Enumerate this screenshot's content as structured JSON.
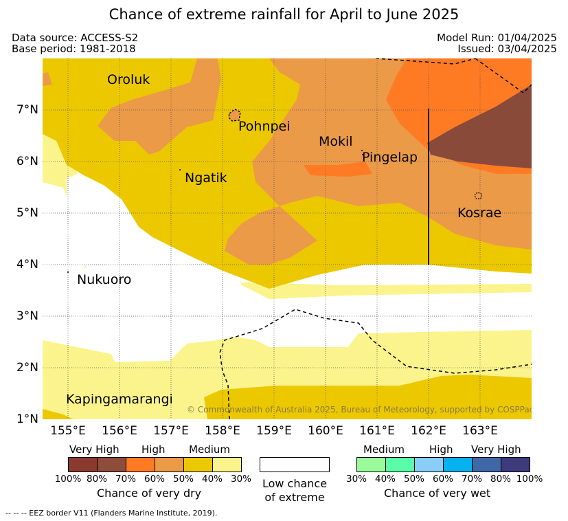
{
  "title": "Chance of extreme rainfall for April to June 2025",
  "header": {
    "data_source": "Data source: ACCESS-S2",
    "base_period": "Base period: 1981-2018",
    "model_run": "Model Run: 01/04/2025",
    "issued": "Issued: 03/04/2025"
  },
  "map": {
    "lat_ticks": [
      "7°N",
      "6°N",
      "5°N",
      "4°N",
      "3°N",
      "2°N",
      "1°N"
    ],
    "lon_ticks": [
      "155°E",
      "156°E",
      "157°E",
      "158°E",
      "159°E",
      "160°E",
      "161°E",
      "162°E",
      "163°E"
    ],
    "places": {
      "oroluk": "Oroluk",
      "pohnpei": "Pohnpei",
      "mokil": "Mokil",
      "pingelap": "Pingelap",
      "ngatik": "Ngatik",
      "kosrae": "Kosrae",
      "nukuoro": "Nukuoro",
      "kapingamarangi": "Kapingamarangi"
    },
    "copyright": "© Commonwealth of Australia 2025, Bureau of Meteorology, supported by COSPPac",
    "colors": {
      "white": "#ffffff",
      "pale_yellow": "#fbf48c",
      "yellow": "#ecc800",
      "light_orange": "#eb9a48",
      "orange": "#fe7b24",
      "brown": "#8a4a3a"
    }
  },
  "legend_dry": {
    "categories": [
      "Very High",
      "High",
      "Medium"
    ],
    "ticks": [
      "100%",
      "80%",
      "70%",
      "60%",
      "50%",
      "40%",
      "30%"
    ],
    "caption": "Chance of very dry",
    "colors": [
      "#8b3a2f",
      "#8e4c3a",
      "#fe7b24",
      "#eb9a48",
      "#ecc800",
      "#fbf48c"
    ]
  },
  "legend_low": {
    "caption_line1": "Low chance",
    "caption_line2": "of extreme",
    "color": "#ffffff"
  },
  "legend_wet": {
    "categories": [
      "Medium",
      "High",
      "Very High"
    ],
    "ticks": [
      "30%",
      "40%",
      "50%",
      "60%",
      "70%",
      "80%",
      "100%"
    ],
    "caption": "Chance of very wet",
    "colors": [
      "#99fb99",
      "#59fca8",
      "#89cdf8",
      "#04b2f0",
      "#3f69a6",
      "#3d3b7b"
    ]
  },
  "footer": "--  --  -- EEZ border V11 (Flanders Marine Institute, 2019)."
}
